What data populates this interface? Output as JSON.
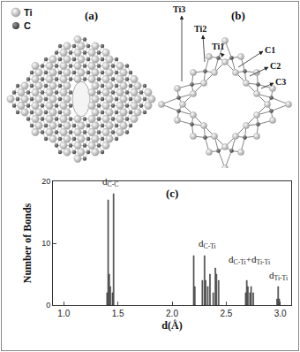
{
  "panels": {
    "a": {
      "label": "(a)",
      "legend": [
        "Ti",
        "C"
      ]
    },
    "b": {
      "label": "(b)",
      "atom_labels": [
        "Ti3",
        "Ti2",
        "Ti1",
        "C1",
        "C2",
        "C3"
      ]
    }
  },
  "chart_data": {
    "type": "bar",
    "title": "(c)",
    "x_label": "d(Å)",
    "y_label": "Number of Bonds",
    "color": "#6e6e6e",
    "grid": false,
    "xlim": [
      0.9,
      3.1
    ],
    "xticks": [
      {
        "value": 1.0,
        "label": "1.0"
      },
      1.5,
      {
        "value": 2.0,
        "label": "2.0"
      },
      2.5,
      {
        "value": 3.0,
        "label": "3.0"
      }
    ],
    "ylim": [
      0,
      20
    ],
    "yticks": [
      0,
      10,
      20
    ],
    "groups": [
      {
        "label": [
          {
            "text": "d",
            "subscript": "C-C"
          }
        ],
        "x": [
          1.4,
          1.41,
          1.42,
          1.43,
          1.45,
          1.46
        ],
        "values": [
          2,
          17,
          5,
          3,
          2,
          18
        ]
      },
      {
        "label": [
          {
            "text": "d",
            "subscript": "C-Ti"
          }
        ],
        "x": [
          2.2,
          2.21,
          2.28,
          2.3,
          2.31,
          2.33,
          2.35,
          2.38,
          2.4,
          2.41,
          2.43
        ],
        "values": [
          8,
          3,
          4,
          8,
          4,
          3,
          5,
          2,
          6,
          5,
          4
        ]
      },
      {
        "label": [
          {
            "text": "d",
            "subscript": "C-Ti"
          },
          {
            "text": "+"
          },
          {
            "text": "d",
            "subscript": "Ti-Ti"
          }
        ],
        "x": [
          2.68,
          2.69,
          2.7,
          2.72,
          2.73,
          2.75
        ],
        "values": [
          2,
          4,
          3,
          2,
          3,
          2
        ]
      },
      {
        "label": [
          {
            "text": "d",
            "subscript": "Ti-Ti"
          }
        ],
        "x": [
          2.97,
          2.98,
          2.99
        ],
        "values": [
          1,
          3,
          1
        ]
      }
    ]
  }
}
